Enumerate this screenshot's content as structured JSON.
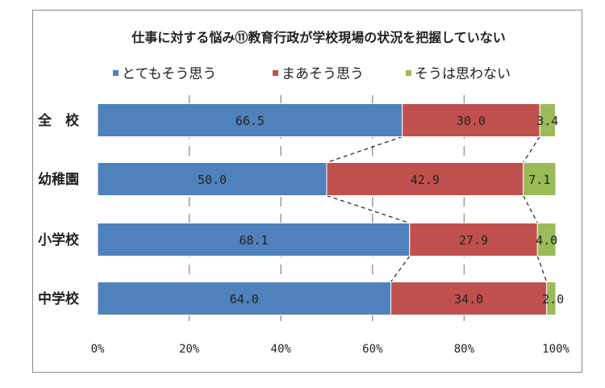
{
  "chart_data": {
    "type": "bar",
    "orientation": "horizontal",
    "stacked": "100%",
    "title": "仕事に対する悩み⑪教育行政が学校現場の状況を把握していない",
    "categories": [
      "全　校",
      "幼稚園",
      "小学校",
      "中学校"
    ],
    "series": [
      {
        "name": "とてもそう思う",
        "color": "#4f81bd",
        "values": [
          66.5,
          50.0,
          68.1,
          64.0
        ]
      },
      {
        "name": "まあそう思う",
        "color": "#c0504d",
        "values": [
          30.0,
          42.9,
          27.9,
          34.0
        ]
      },
      {
        "name": "そうは思わない",
        "color": "#9bbb59",
        "values": [
          3.4,
          7.1,
          4.0,
          2.0
        ]
      }
    ],
    "data_labels": [
      [
        "66.5",
        "30.0",
        "3.4"
      ],
      [
        "50.0",
        "42.9",
        "7.1"
      ],
      [
        "68.1",
        "27.9",
        "4.0"
      ],
      [
        "64.0",
        "34.0",
        "2.0"
      ]
    ],
    "xlim": [
      0,
      100
    ],
    "xticks": [
      "0%",
      "20%",
      "40%",
      "60%",
      "80%",
      "100%"
    ],
    "legend_position": "top",
    "gridlines": "dashed vertical",
    "series_lines": true
  }
}
